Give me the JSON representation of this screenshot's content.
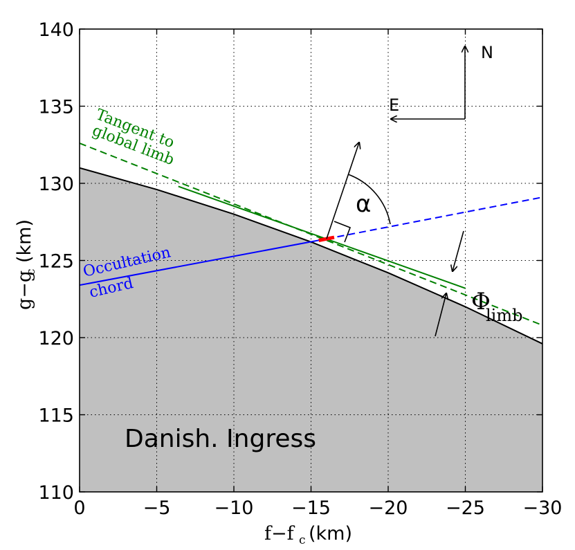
{
  "chart_data": {
    "type": "line",
    "xlabel_main": "f−f",
    "xlabel_sub": "c",
    "xlabel_unit": "(km)",
    "ylabel_main": "g−g",
    "ylabel_sub": "c",
    "ylabel_unit": "(km)",
    "xlim": [
      0,
      -30
    ],
    "ylim": [
      110,
      140
    ],
    "x_ticks": [
      0,
      -5,
      -10,
      -15,
      -20,
      -25,
      -30
    ],
    "x_tick_labels": [
      "0",
      "−5",
      "−10",
      "−15",
      "−20",
      "−25",
      "−30"
    ],
    "y_ticks": [
      110,
      115,
      120,
      125,
      130,
      135,
      140
    ],
    "y_tick_labels": [
      "110",
      "115",
      "120",
      "125",
      "130",
      "135",
      "140"
    ],
    "grid": true,
    "colors": {
      "limb": "#000000",
      "body_fill": "#c0c0c0",
      "chord": "#0000ff",
      "tangent": "#008000",
      "event": "#ff0000"
    },
    "limb_profile": {
      "x": [
        0,
        -5,
        -10,
        -15,
        -20,
        -25,
        -30
      ],
      "y": [
        131.0,
        129.6,
        128.0,
        126.2,
        124.2,
        122.0,
        119.6
      ]
    },
    "occultation_chord": {
      "solid": {
        "x": [
          0,
          -16.0
        ],
        "y": [
          123.4,
          126.4
        ]
      },
      "dashed": {
        "x": [
          -16.0,
          -30.0
        ],
        "y": [
          126.4,
          129.1
        ]
      }
    },
    "tangent_global_limb": {
      "x": [
        0,
        -30
      ],
      "y": [
        132.6,
        120.8
      ]
    },
    "tangent_local_limb": {
      "x": [
        -6.4,
        -25.0
      ],
      "y": [
        129.8,
        123.2
      ]
    },
    "event_segment": {
      "x": [
        -15.5,
        -16.5
      ],
      "y": [
        126.3,
        126.5
      ]
    },
    "annotations": {
      "tangent_label_line1": "Tangent to",
      "tangent_label_line2": "global limb",
      "chord_label_line1": "Occultation",
      "chord_label_line2": "chord",
      "alpha_label": "α",
      "phi_label": "Φ",
      "phi_sub": "limb",
      "north_label": "N",
      "east_label": "E",
      "panel_label": "Danish. Ingress"
    }
  }
}
